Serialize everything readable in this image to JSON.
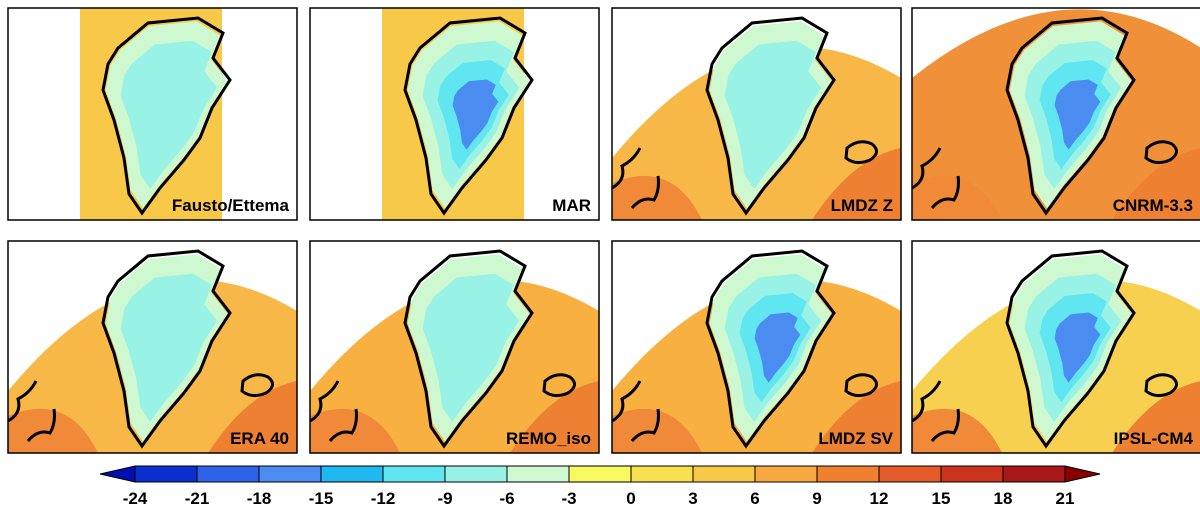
{
  "panels": [
    {
      "label": "Fausto/Ettema",
      "style": "strip",
      "background": "#f8c848"
    },
    {
      "label": "MAR",
      "style": "strip",
      "background": "#f8c848"
    },
    {
      "label": "LMDZ Z",
      "style": "fan",
      "background": "#f8b848"
    },
    {
      "label": "CNRM-3.3",
      "style": "fan",
      "background": "#f09038"
    },
    {
      "label": "ERA 40",
      "style": "fan",
      "background": "#f8b848"
    },
    {
      "label": "REMO_iso",
      "style": "fan",
      "background": "#f8b040"
    },
    {
      "label": "LMDZ SV",
      "style": "fan",
      "background": "#f8b040"
    },
    {
      "label": "IPSL-CM4",
      "style": "fan",
      "background": "#f8d050"
    }
  ],
  "colorbar": {
    "ticks": [
      -24,
      -21,
      -18,
      -15,
      -12,
      -9,
      -6,
      -3,
      0,
      3,
      6,
      9,
      12,
      15,
      18,
      21
    ],
    "under_color": "#0010b0",
    "over_color": "#8a0000",
    "colors": [
      "#0a2ed0",
      "#2e62e8",
      "#4a8cf0",
      "#20b8f0",
      "#60e6f0",
      "#98f2e6",
      "#cdf8d0",
      "#f8f860",
      "#f8e050",
      "#f8c848",
      "#f8a840",
      "#f08030",
      "#e45a28",
      "#cc3420",
      "#a81818"
    ]
  }
}
